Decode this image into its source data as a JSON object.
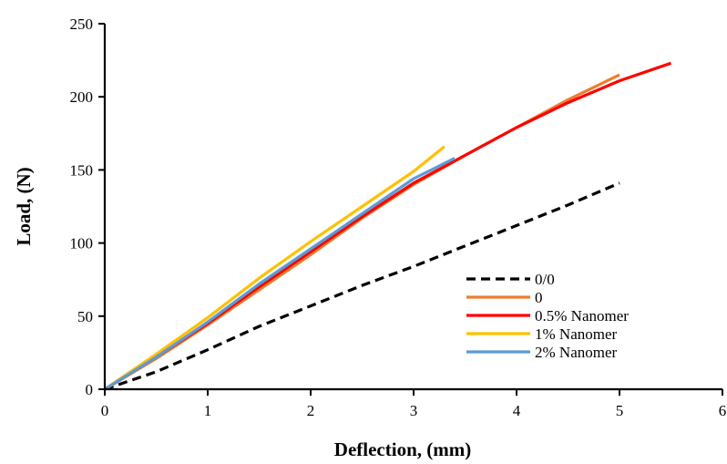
{
  "chart_data": {
    "type": "line",
    "title": "",
    "xlabel": "Deflection, (mm)",
    "ylabel": "Load, (N)",
    "xlim": [
      0,
      6
    ],
    "ylim": [
      0,
      250
    ],
    "xticks": [
      0,
      1,
      2,
      3,
      4,
      5,
      6
    ],
    "yticks": [
      0,
      50,
      100,
      150,
      200,
      250
    ],
    "grid": false,
    "legend_position": "bottom-right",
    "series": [
      {
        "name": "0/0",
        "color": "#000000",
        "dash": true,
        "x": [
          0,
          0.5,
          1,
          1.5,
          2,
          2.5,
          3,
          3.5,
          4,
          4.5,
          5
        ],
        "y": [
          0,
          12,
          27,
          43,
          57,
          71,
          84,
          98,
          112,
          126,
          141
        ]
      },
      {
        "name": "0",
        "color": "#ED7D31",
        "dash": false,
        "x": [
          0,
          0.5,
          1,
          1.5,
          2,
          2.5,
          3,
          3.5,
          4,
          4.5,
          5
        ],
        "y": [
          0,
          21,
          44,
          68,
          92,
          117,
          140,
          160,
          179,
          198,
          215
        ]
      },
      {
        "name": "0.5% Nanomer",
        "color": "#FF0000",
        "dash": false,
        "x": [
          0,
          0.5,
          1,
          1.5,
          2,
          2.5,
          3,
          3.5,
          4,
          4.5,
          5,
          5.5
        ],
        "y": [
          0,
          22,
          45,
          70,
          94,
          118,
          141,
          160,
          179,
          196,
          211,
          223
        ]
      },
      {
        "name": "1% Nanomer",
        "color": "#FFC000",
        "dash": false,
        "x": [
          0,
          0.5,
          1,
          1.5,
          2,
          2.5,
          3,
          3.3
        ],
        "y": [
          0,
          24,
          49,
          76,
          101,
          125,
          149,
          166
        ]
      },
      {
        "name": "2% Nanomer",
        "color": "#5B9BD5",
        "dash": false,
        "x": [
          0,
          0.5,
          1,
          1.5,
          2,
          2.5,
          3,
          3.4
        ],
        "y": [
          0,
          22,
          46,
          72,
          96,
          120,
          144,
          158
        ]
      }
    ]
  }
}
